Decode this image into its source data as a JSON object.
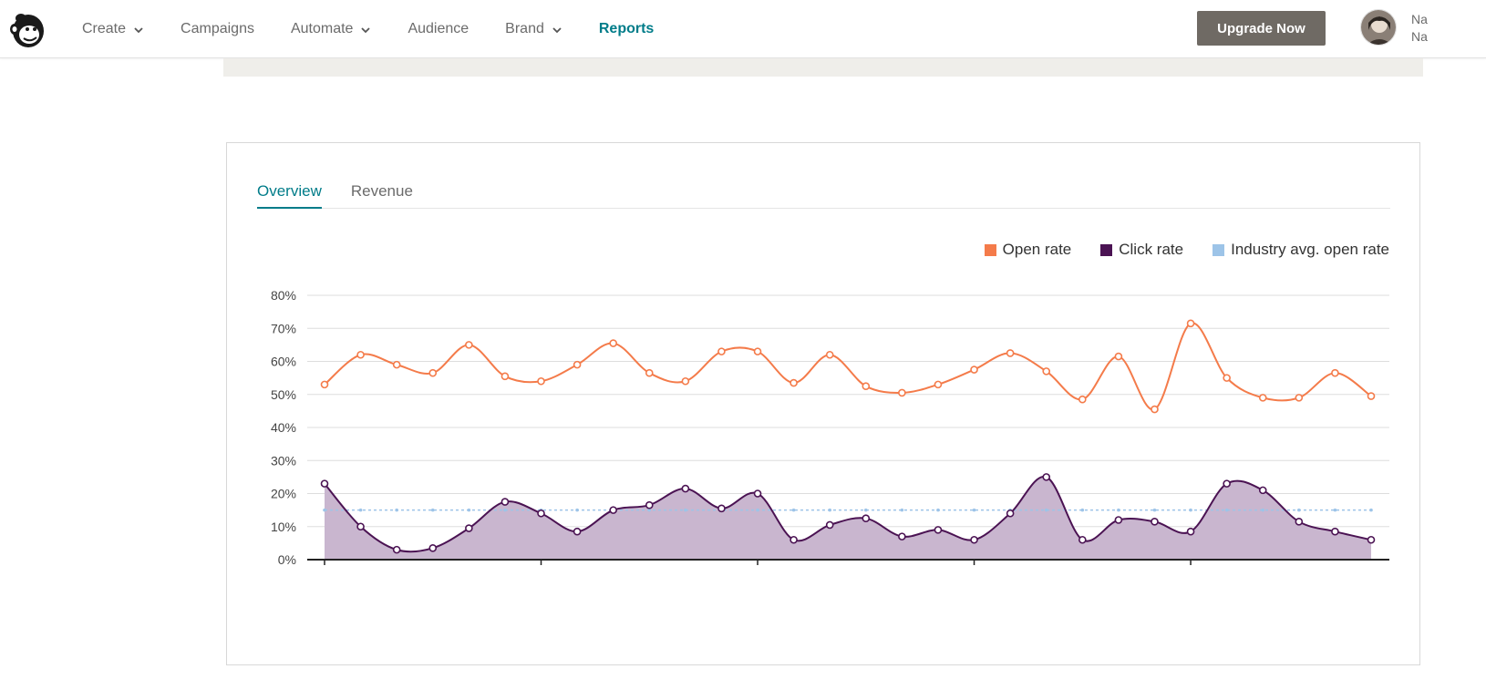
{
  "nav": {
    "items": [
      {
        "label": "Create",
        "dropdown": true,
        "active": false
      },
      {
        "label": "Campaigns",
        "dropdown": false,
        "active": false
      },
      {
        "label": "Automate",
        "dropdown": true,
        "active": false
      },
      {
        "label": "Audience",
        "dropdown": false,
        "active": false
      },
      {
        "label": "Brand",
        "dropdown": true,
        "active": false
      },
      {
        "label": "Reports",
        "dropdown": false,
        "active": true
      }
    ],
    "upgrade_label": "Upgrade Now",
    "user_line1": "Na",
    "user_line2": "Na",
    "logo_icon": "mailchimp-logo-icon"
  },
  "tabs": [
    {
      "label": "Overview",
      "active": true
    },
    {
      "label": "Revenue",
      "active": false
    }
  ],
  "colors": {
    "accent": "#007c89",
    "open_rate": "#f47b4a",
    "click_rate": "#4b1353",
    "industry_avg": "#9dc4e8",
    "click_fill": "#c9b6cf"
  },
  "chart_data": {
    "type": "line",
    "ylim": [
      0,
      80
    ],
    "yticks": [
      "0%",
      "10%",
      "20%",
      "30%",
      "40%",
      "50%",
      "60%",
      "70%",
      "80%"
    ],
    "grid": true,
    "legend_position": "top-right",
    "series": [
      {
        "name": "Open rate",
        "values": [
          53,
          62,
          59,
          56.5,
          65,
          55.5,
          54,
          59,
          65.5,
          56.5,
          54,
          63,
          63,
          53.5,
          62,
          52.5,
          50.5,
          53,
          57.5,
          62.5,
          57,
          48.5,
          61.5,
          45.5,
          71.5,
          55,
          49,
          49,
          56.5,
          49.5
        ]
      },
      {
        "name": "Click rate",
        "values": [
          23,
          10,
          3,
          3.5,
          9.5,
          17.5,
          14,
          8.5,
          15,
          16.5,
          21.5,
          15.5,
          20,
          6,
          10.5,
          12.5,
          7,
          9,
          6,
          14,
          25,
          6,
          12,
          11.5,
          8.5,
          23,
          21,
          11.5,
          8.5,
          6
        ]
      },
      {
        "name": "Industry avg. open rate",
        "values": [
          15,
          15,
          15,
          15,
          15,
          15,
          15,
          15,
          15,
          15,
          15,
          15,
          15,
          15,
          15,
          15,
          15,
          15,
          15,
          15,
          15,
          15,
          15,
          15,
          15,
          15,
          15,
          15,
          15,
          15
        ]
      }
    ]
  }
}
